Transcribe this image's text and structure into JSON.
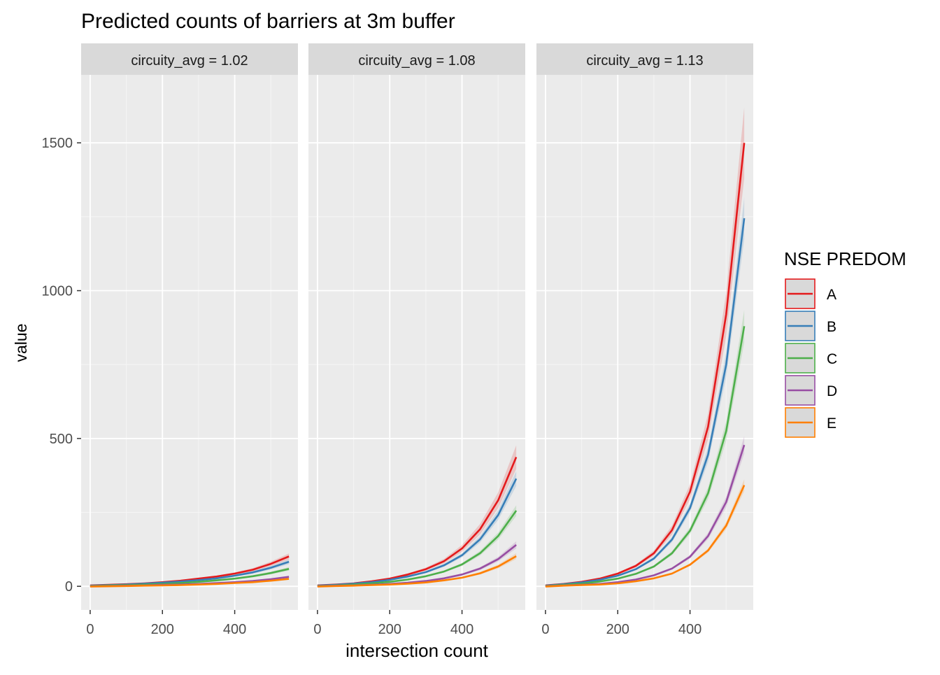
{
  "chart_data": {
    "type": "line",
    "title": "Predicted counts of barriers at 3m buffer",
    "xlabel": "intersection count",
    "ylabel": "value",
    "xlim": [
      -25,
      575
    ],
    "ylim": [
      -80,
      1730
    ],
    "x_ticks": [
      0,
      200,
      400
    ],
    "y_ticks": [
      0,
      500,
      1000,
      1500
    ],
    "grid": true,
    "legend": {
      "title": "NSE PREDOM",
      "position": "right",
      "entries": [
        "A",
        "B",
        "C",
        "D",
        "E"
      ]
    },
    "colors": {
      "A": "#E41A1C",
      "B": "#377EB8",
      "C": "#4DAF4A",
      "D": "#984EA3",
      "E": "#FF7F00"
    },
    "x": [
      0,
      50,
      100,
      150,
      200,
      250,
      300,
      350,
      400,
      450,
      500,
      550
    ],
    "panels": [
      {
        "label": "circuity_avg = 1.02",
        "series": [
          {
            "name": "A",
            "values": [
              3,
              5,
              7,
              10,
              14,
              19,
              26,
              33,
              43,
              56,
              76,
              101
            ]
          },
          {
            "name": "B",
            "values": [
              2,
              4,
              6,
              9,
              12,
              16,
              21,
              27,
              36,
              47,
              63,
              83
            ]
          },
          {
            "name": "C",
            "values": [
              1,
              3,
              4,
              6,
              8,
              11,
              15,
              20,
              26,
              34,
              45,
              59
            ]
          },
          {
            "name": "D",
            "values": [
              0,
              1,
              2,
              3,
              5,
              6,
              8,
              11,
              14,
              18,
              24,
              32
            ]
          },
          {
            "name": "E",
            "values": [
              -1,
              0,
              1,
              2,
              3,
              4,
              6,
              8,
              11,
              14,
              19,
              25
            ]
          }
        ],
        "bands": {
          "A": 10,
          "B": 8,
          "C": 6,
          "D": 4,
          "E": 3
        }
      },
      {
        "label": "circuity_avg = 1.08",
        "series": [
          {
            "name": "A",
            "values": [
              3,
              6,
              10,
              17,
              26,
              40,
              58,
              85,
              128,
              193,
              291,
              437
            ]
          },
          {
            "name": "B",
            "values": [
              2,
              5,
              9,
              14,
              22,
              33,
              48,
              71,
              105,
              159,
              241,
              364
            ]
          },
          {
            "name": "C",
            "values": [
              1,
              3,
              6,
              10,
              15,
              23,
              34,
              50,
              74,
              112,
              170,
              256
            ]
          },
          {
            "name": "D",
            "values": [
              0,
              2,
              3,
              5,
              8,
              12,
              18,
              27,
              40,
              60,
              92,
              140
            ]
          },
          {
            "name": "E",
            "values": [
              -1,
              1,
              2,
              4,
              6,
              9,
              13,
              20,
              29,
              44,
              67,
              102
            ]
          }
        ],
        "bands": {
          "A": 40,
          "B": 25,
          "C": 18,
          "D": 12,
          "E": 10
        }
      },
      {
        "label": "circuity_avg = 1.13",
        "series": [
          {
            "name": "A",
            "values": [
              3,
              8,
              15,
              26,
              43,
              69,
              112,
              190,
              320,
              540,
              920,
              1500
            ]
          },
          {
            "name": "B",
            "values": [
              2,
              7,
              13,
              22,
              36,
              58,
              94,
              158,
              265,
              445,
              750,
              1245
            ]
          },
          {
            "name": "C",
            "values": [
              1,
              5,
              9,
              16,
              26,
              42,
              67,
              112,
              188,
              315,
              525,
              880
            ]
          },
          {
            "name": "D",
            "values": [
              0,
              3,
              5,
              8,
              14,
              23,
              37,
              60,
              100,
              170,
              285,
              478
            ]
          },
          {
            "name": "E",
            "values": [
              -1,
              2,
              4,
              6,
              10,
              17,
              27,
              43,
              73,
              121,
              205,
              342
            ]
          }
        ],
        "bands": {
          "A": 120,
          "B": 70,
          "C": 55,
          "D": 30,
          "E": 20
        }
      }
    ]
  }
}
